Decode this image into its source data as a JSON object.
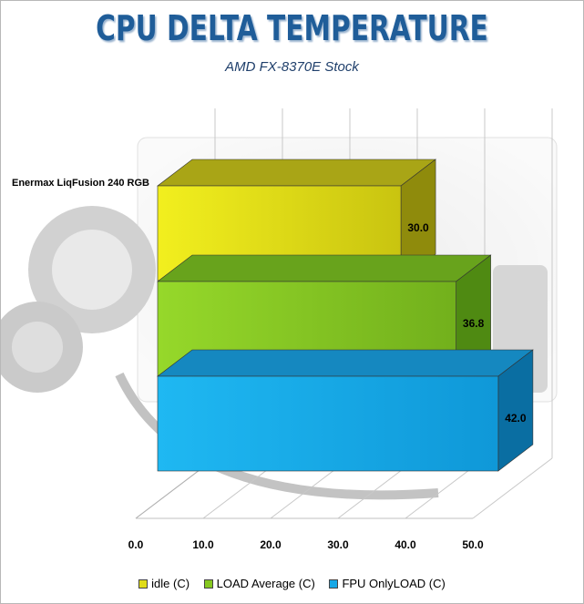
{
  "chart_data": {
    "type": "bar",
    "orientation": "horizontal",
    "style": "3d",
    "title": "CPU DELTA TEMPERATURE",
    "subtitle": "AMD FX-8370E Stock",
    "categories": [
      "Enermax LiqFusion 240 RGB"
    ],
    "series": [
      {
        "name": "idle (C)",
        "values": [
          30.0
        ],
        "color": "#e0dc18"
      },
      {
        "name": "LOAD Average (C)",
        "values": [
          36.8
        ],
        "color": "#86c820"
      },
      {
        "name": "FPU OnlyLOAD  (C)",
        "values": [
          42.0
        ],
        "color": "#18a8e6"
      }
    ],
    "data_labels": [
      "30.0",
      "36.8",
      "42.0"
    ],
    "x_ticks": [
      "0.0",
      "10.0",
      "20.0",
      "30.0",
      "40.0",
      "50.0"
    ],
    "xlim": [
      0,
      50
    ],
    "grid": true,
    "legend_position": "bottom"
  }
}
